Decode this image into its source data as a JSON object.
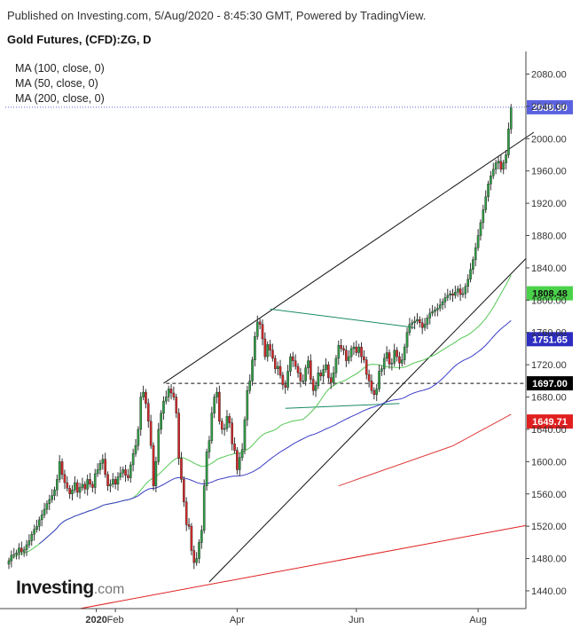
{
  "header": {
    "published": "Published on Investing.com, 5/Aug/2020 - 8:45:30 GMT, Powered by TradingView.",
    "title": "Gold Futures, (CFD):ZG, D"
  },
  "indicators": [
    {
      "label": "MA (100, close, 0)",
      "color": "#3c3cc8"
    },
    {
      "label": "MA (50, close, 0)",
      "color": "#55c855"
    },
    {
      "label": "MA (200, close, 0)",
      "color": "#e03c3c"
    }
  ],
  "logo": {
    "brand": "Investing",
    "suffix": ".com"
  },
  "chart_data": {
    "type": "candlestick",
    "title": "Gold Futures, (CFD):ZG, D",
    "x_ticks": [
      "2020",
      "Feb",
      "Apr",
      "Jun",
      "Aug"
    ],
    "y_ticks": [
      1440,
      1480,
      1520,
      1560,
      1600,
      1640,
      1680,
      1720,
      1760,
      1800,
      1840,
      1880,
      1920,
      1960,
      2000,
      2040,
      2080
    ],
    "y_tick_labels": [
      "1440.00",
      "1480.00",
      "1520.00",
      "1560.00",
      "1600.00",
      "1640.00",
      "1680.00",
      "1720.00",
      "1760.00",
      "1800.00",
      "1840.00",
      "1880.00",
      "1920.00",
      "1960.00",
      "2000.00",
      "2040.00",
      "2080.00"
    ],
    "ylim": [
      1418,
      2108
    ],
    "last_price": {
      "value": 2038.9,
      "label": "2038.90",
      "color": "#5b62e0"
    },
    "price_labels": [
      {
        "value": 1808.48,
        "label": "1808.48",
        "color": "#4ad24a",
        "text_color": "#111111"
      },
      {
        "value": 1751.65,
        "label": "1751.65",
        "color": "#2d2dc0",
        "text_color": "#ffffff"
      },
      {
        "value": 1697.0,
        "label": "1697.00",
        "color": "#000000",
        "text_color": "#ffffff"
      },
      {
        "value": 1649.71,
        "label": "1649.71",
        "color": "#e02020",
        "text_color": "#ffffff"
      }
    ],
    "grid": false,
    "candle_colors": {
      "up": "#2f9e44",
      "down": "#d62828",
      "wick": "#333333"
    },
    "closes": [
      1477,
      1484,
      1485,
      1487,
      1493,
      1488,
      1491,
      1497,
      1502,
      1510,
      1516,
      1520,
      1528,
      1534,
      1541,
      1548,
      1553,
      1558,
      1565,
      1578,
      1600,
      1584,
      1574,
      1567,
      1560,
      1565,
      1574,
      1562,
      1568,
      1572,
      1566,
      1578,
      1572,
      1568,
      1585,
      1590,
      1598,
      1603,
      1584,
      1570,
      1572,
      1578,
      1572,
      1581,
      1586,
      1590,
      1583,
      1580,
      1596,
      1610,
      1620,
      1640,
      1680,
      1686,
      1672,
      1650,
      1620,
      1570,
      1600,
      1640,
      1660,
      1675,
      1680,
      1690,
      1685,
      1680,
      1660,
      1604,
      1578,
      1550,
      1522,
      1520,
      1490,
      1475,
      1480,
      1500,
      1515,
      1570,
      1612,
      1626,
      1660,
      1680,
      1686,
      1650,
      1640,
      1641,
      1656,
      1648,
      1622,
      1614,
      1590,
      1605,
      1615,
      1652,
      1688,
      1700,
      1726,
      1755,
      1773,
      1770,
      1752,
      1730,
      1745,
      1738,
      1728,
      1715,
      1718,
      1707,
      1695,
      1692,
      1712,
      1730,
      1725,
      1718,
      1710,
      1700,
      1700,
      1716,
      1725,
      1702,
      1688,
      1694,
      1710,
      1706,
      1714,
      1720,
      1704,
      1698,
      1710,
      1728,
      1744,
      1740,
      1738,
      1725,
      1730,
      1740,
      1742,
      1735,
      1742,
      1730,
      1726,
      1708,
      1700,
      1688,
      1683,
      1690,
      1712,
      1715,
      1728,
      1735,
      1721,
      1722,
      1738,
      1730,
      1722,
      1726,
      1742,
      1760,
      1770,
      1772,
      1774,
      1776,
      1772,
      1766,
      1770,
      1778,
      1784,
      1786,
      1788,
      1790,
      1794,
      1798,
      1803,
      1806,
      1808,
      1806,
      1810,
      1814,
      1807,
      1808,
      1817,
      1826,
      1838,
      1850,
      1865,
      1880,
      1896,
      1912,
      1928,
      1944,
      1954,
      1962,
      1970,
      1972,
      1962,
      1970,
      1980,
      2012,
      2038.9
    ]
  }
}
